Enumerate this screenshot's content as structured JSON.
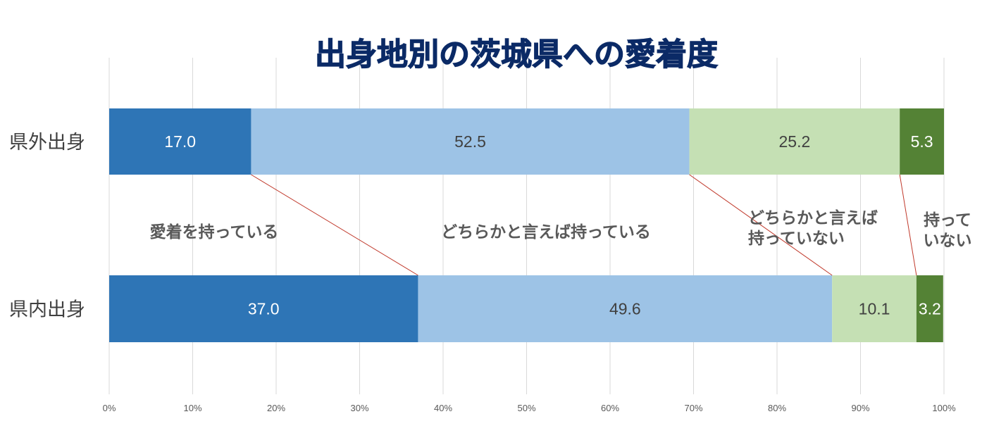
{
  "chart_data": {
    "type": "bar",
    "orientation": "horizontal",
    "stacked": true,
    "title": "出身地別の茨城県への愛着度",
    "xlim": [
      0,
      100
    ],
    "x_ticks": [
      "0%",
      "10%",
      "20%",
      "30%",
      "40%",
      "50%",
      "60%",
      "70%",
      "80%",
      "90%",
      "100%"
    ],
    "grid": true,
    "categories": [
      "県外出身",
      "県内出身"
    ],
    "series": [
      {
        "name": "愛着を持っている",
        "values": [
          17.0,
          37.0
        ],
        "color": "#2e75b6",
        "label_color": "#ffffff"
      },
      {
        "name": "どちらかと言えば持っている",
        "values": [
          52.5,
          49.6
        ],
        "color": "#9dc3e6",
        "label_color": "#404040"
      },
      {
        "name": "どちらかと言えば\n持っていない",
        "values": [
          25.2,
          10.1
        ],
        "color": "#c5e0b4",
        "label_color": "#404040"
      },
      {
        "name": "持って\nいない",
        "values": [
          5.3,
          3.2
        ],
        "color": "#548235",
        "label_color": "#ffffff"
      }
    ],
    "connector_color": "#c0392b"
  }
}
